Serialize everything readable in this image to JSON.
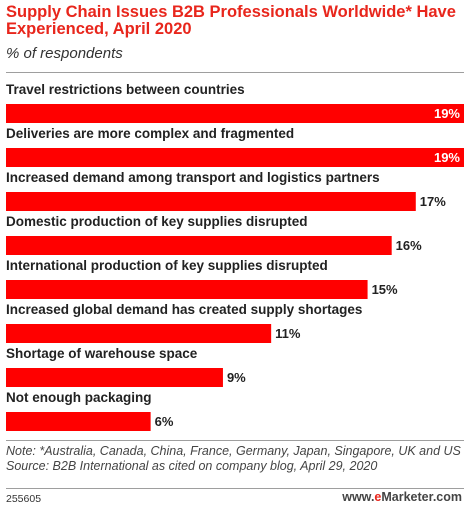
{
  "title": "Supply Chain Issues B2B Professionals Worldwide* Have Experienced, April 2020",
  "subtitle": "% of respondents",
  "note": "Note: *Australia, Canada, China, France, Germany, Japan, Singapore, UK and US",
  "source": "Source: B2B International as cited on company blog, April 29, 2020",
  "chart_id": "255605",
  "brand": {
    "prefix": "www.",
    "e": "e",
    "name": "Marketer",
    "suffix": ".com"
  },
  "chart_data": {
    "type": "bar",
    "orientation": "horizontal",
    "categories": [
      "Travel restrictions between countries",
      "Deliveries are more complex and fragmented",
      "Increased demand among transport and logistics partners",
      "Domestic production of key supplies disrupted",
      "International production of key supplies disrupted",
      "Increased global demand has created supply shortages",
      "Shortage of warehouse space",
      "Not enough packaging"
    ],
    "values": [
      19,
      19,
      17,
      16,
      15,
      11,
      9,
      6
    ],
    "value_labels": [
      "19%",
      "19%",
      "17%",
      "16%",
      "15%",
      "11%",
      "9%",
      "6%"
    ],
    "unit": "%",
    "xlim": [
      0,
      19
    ],
    "color": "#ff0000",
    "grid": false,
    "legend": "none"
  }
}
